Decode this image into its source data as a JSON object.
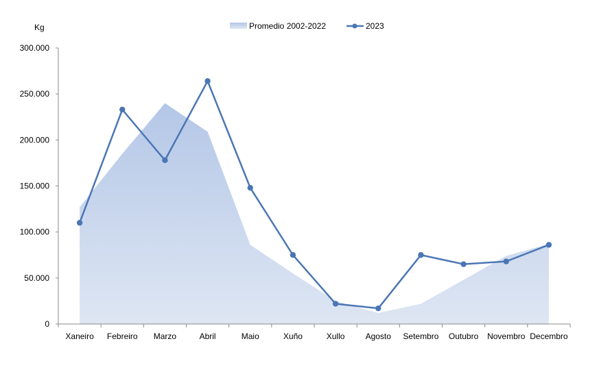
{
  "chart_data": {
    "type": "area",
    "ylabel": "Kg",
    "ylim": [
      0,
      300000
    ],
    "y_ticks": [
      0,
      50000,
      100000,
      150000,
      200000,
      250000,
      300000
    ],
    "y_tick_labels": [
      "0",
      "50.000",
      "100.000",
      "150.000",
      "200.000",
      "250.000",
      "300.000"
    ],
    "categories": [
      "Xaneiro",
      "Febreiro",
      "Marzo",
      "Abril",
      "Maio",
      "Xuño",
      "Xullo",
      "Agosto",
      "Setembro",
      "Outubro",
      "Novembro",
      "Decembro"
    ],
    "legend_position": "top-center",
    "grid": false,
    "series": [
      {
        "name": "Promedio 2002-2022",
        "type": "area",
        "color": "#b4c7e7",
        "values": [
          127000,
          185000,
          240000,
          209000,
          86000,
          55000,
          25000,
          12000,
          22000,
          48000,
          74000,
          87000
        ]
      },
      {
        "name": "2023",
        "type": "line",
        "color": "#4a76b4",
        "marker": "circle",
        "values": [
          110000,
          233000,
          178000,
          264000,
          148000,
          75000,
          22000,
          17000,
          75000,
          65000,
          68000,
          86000
        ]
      }
    ]
  }
}
